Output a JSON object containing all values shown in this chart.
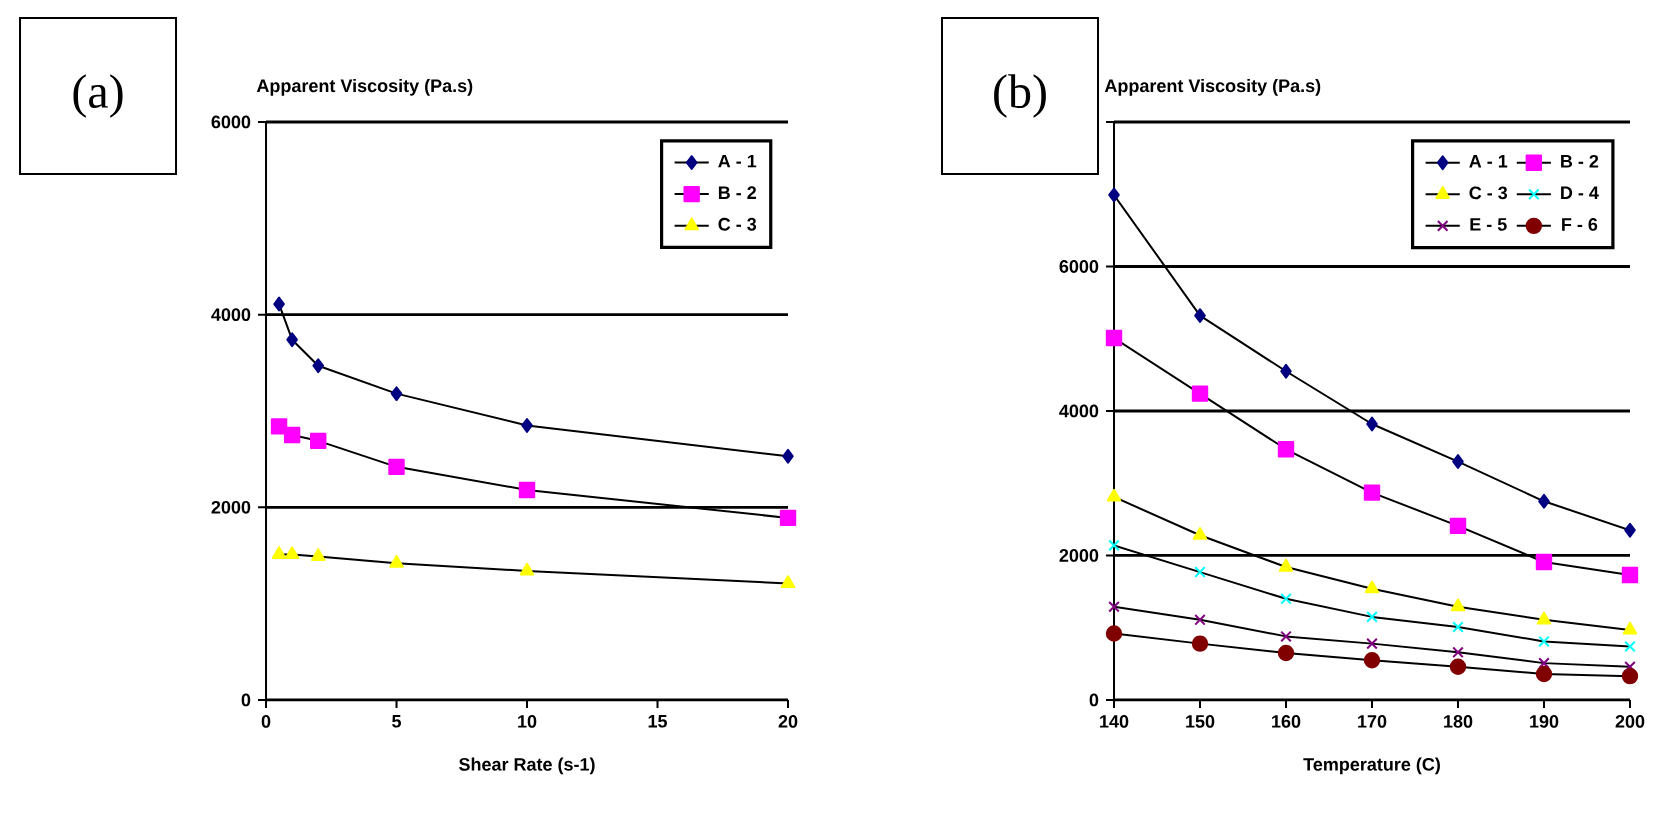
{
  "chart_data": [
    {
      "type": "line",
      "xlabel": "Shear Rate (s-1)",
      "ylabel": "Apparent Viscosity (Pa.s)",
      "annotations": [
        "(a)"
      ],
      "x": [
        0.5,
        1,
        2,
        5,
        10,
        20
      ],
      "xlim": [
        0,
        20
      ],
      "xticks": [
        0,
        5,
        10,
        15,
        20
      ],
      "ylim": [
        0,
        6000
      ],
      "yticks": [
        0,
        2000,
        4000,
        6000
      ],
      "grid": "y",
      "legend": "top right",
      "series": [
        {
          "name": "A - 1",
          "color": "#000080",
          "marker": "diamond",
          "values": [
            4110,
            3740,
            3470,
            3180,
            2850,
            2530
          ]
        },
        {
          "name": "B - 2",
          "color": "#ff00ff",
          "marker": "square",
          "values": [
            2840,
            2750,
            2690,
            2420,
            2180,
            1890
          ]
        },
        {
          "name": "C - 3",
          "color": "#ffff00",
          "marker": "triangle",
          "values": [
            1510,
            1510,
            1490,
            1420,
            1340,
            1210
          ]
        }
      ]
    },
    {
      "type": "line",
      "xlabel": "Temperature (C)",
      "ylabel": "Apparent Viscosity (Pa.s)",
      "annotations": [
        "(b)"
      ],
      "x": [
        140,
        150,
        160,
        170,
        180,
        190,
        200
      ],
      "xlim": [
        140,
        200
      ],
      "xticks": [
        140,
        150,
        160,
        170,
        180,
        190,
        200
      ],
      "ylim": [
        0,
        8000
      ],
      "yticks": [
        0,
        2000,
        4000,
        6000,
        {
          "value": 8000,
          "label": null
        }
      ],
      "grid": "y",
      "legend": "top right",
      "series": [
        {
          "name": "A - 1",
          "color": "#000080",
          "marker": "diamond",
          "values": [
            6990,
            5320,
            4550,
            3820,
            3300,
            2750,
            2350
          ]
        },
        {
          "name": "B - 2",
          "color": "#ff00ff",
          "marker": "square",
          "values": [
            5010,
            4240,
            3470,
            2870,
            2410,
            1910,
            1730
          ]
        },
        {
          "name": "C - 3",
          "color": "#ffff00",
          "marker": "triangle",
          "values": [
            2810,
            2280,
            1840,
            1540,
            1290,
            1110,
            970
          ]
        },
        {
          "name": "D - 4",
          "color": "#00ffff",
          "marker": "cross",
          "values": [
            2140,
            1770,
            1400,
            1150,
            1010,
            810,
            740
          ]
        },
        {
          "name": "E - 5",
          "color": "#800080",
          "marker": "cross",
          "values": [
            1290,
            1110,
            880,
            780,
            660,
            510,
            460
          ]
        },
        {
          "name": "F - 6",
          "color": "#800000",
          "marker": "circle",
          "values": [
            920,
            780,
            650,
            550,
            460,
            360,
            330
          ]
        }
      ]
    }
  ]
}
